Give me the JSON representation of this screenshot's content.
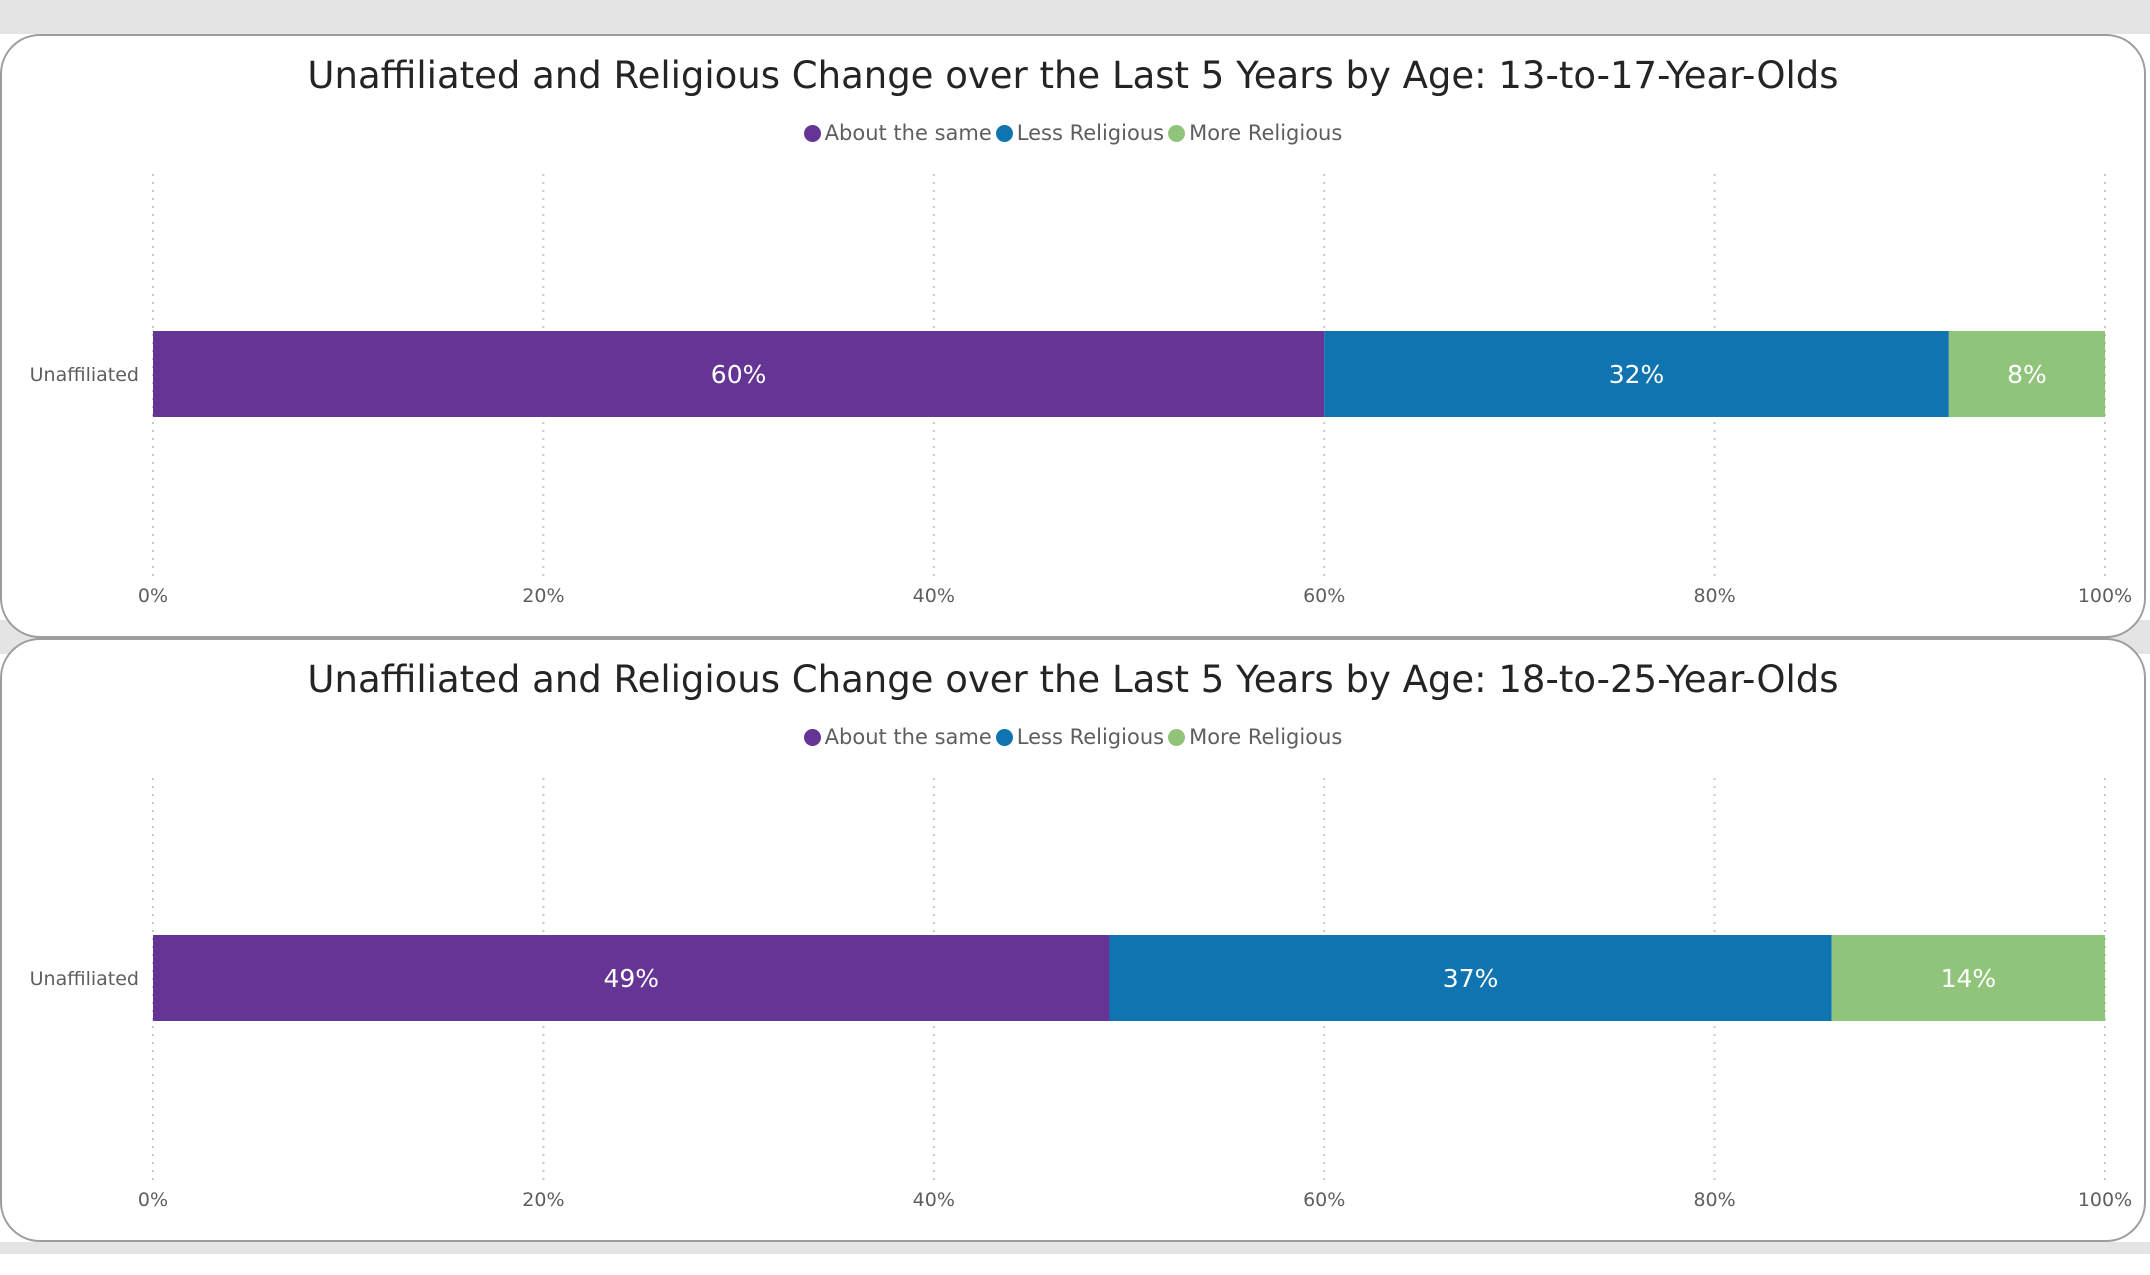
{
  "chart_data": [
    {
      "type": "bar",
      "orientation": "horizontal",
      "stacked": true,
      "title": "Unaffiliated and Religious Change over the Last 5 Years by Age: 13-to-17-Year-Olds",
      "categories": [
        "Unaffiliated"
      ],
      "series": [
        {
          "name": "About the same",
          "values": [
            60
          ],
          "label": "60%",
          "color": "#643594"
        },
        {
          "name": "Less Religious",
          "values": [
            32
          ],
          "label": "32%",
          "color": "#1074b1"
        },
        {
          "name": "More Religious",
          "values": [
            8
          ],
          "label": "8%",
          "color": "#91c47b"
        }
      ],
      "xlim": [
        0,
        100
      ],
      "x_ticks": [
        "0%",
        "20%",
        "40%",
        "60%",
        "80%",
        "100%"
      ],
      "grid": "vertical dotted",
      "legend": "top-center"
    },
    {
      "type": "bar",
      "orientation": "horizontal",
      "stacked": true,
      "title": "Unaffiliated and Religious Change over the Last 5 Years by Age: 18-to-25-Year-Olds",
      "categories": [
        "Unaffiliated"
      ],
      "series": [
        {
          "name": "About the same",
          "values": [
            49
          ],
          "label": "49%",
          "color": "#643594"
        },
        {
          "name": "Less Religious",
          "values": [
            37
          ],
          "label": "37%",
          "color": "#1074b1"
        },
        {
          "name": "More Religious",
          "values": [
            14
          ],
          "label": "14%",
          "color": "#91c47b"
        }
      ],
      "xlim": [
        0,
        100
      ],
      "x_ticks": [
        "0%",
        "20%",
        "40%",
        "60%",
        "80%",
        "100%"
      ],
      "grid": "vertical dotted",
      "legend": "top-center"
    }
  ]
}
